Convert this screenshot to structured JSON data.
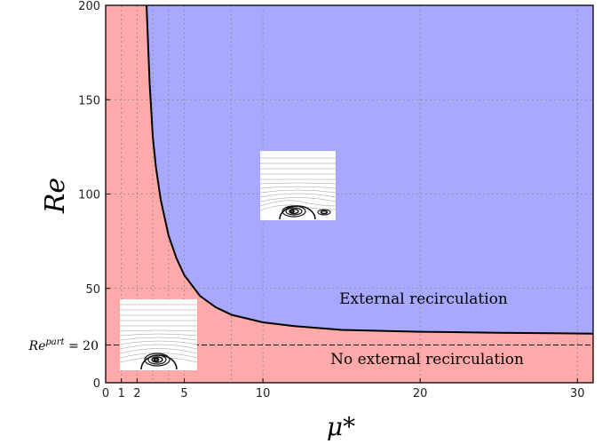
{
  "chart_data": {
    "type": "area",
    "title": "",
    "xlabel": "μ*",
    "ylabel": "Re",
    "xlim": [
      0,
      31
    ],
    "ylim": [
      0,
      200
    ],
    "x_ticks": [
      0,
      1,
      2,
      5,
      10,
      20,
      30
    ],
    "y_ticks": [
      0,
      20,
      50,
      100,
      150,
      200
    ],
    "x_tick_labels": [
      "0",
      "1",
      "2",
      "5",
      "10",
      "20",
      "30"
    ],
    "y_tick_labels": [
      "0",
      "50",
      "100",
      "150",
      "200"
    ],
    "grid_x": [
      1,
      2,
      3,
      4,
      5,
      8,
      10,
      20,
      30
    ],
    "grid_y": [
      50,
      100,
      150
    ],
    "grid": true,
    "boundary_curve": {
      "x": [
        2.6,
        2.8,
        3,
        3.2,
        3.5,
        4,
        4.5,
        5,
        6,
        7,
        8,
        10,
        12,
        15,
        20,
        25,
        31
      ],
      "y": [
        200,
        158,
        130,
        114,
        97,
        78,
        66,
        57,
        46,
        40,
        36,
        32,
        30,
        28,
        27,
        26.5,
        26
      ]
    },
    "reference_line": {
      "y": 20,
      "label_left": "Re",
      "label_sup": "part",
      "label_right": " = 20"
    },
    "regions": [
      {
        "label": "External recirculation",
        "color": "#a8a8ff"
      },
      {
        "label": "No external recirculation",
        "color": "#ffaaaa"
      }
    ],
    "colors": {
      "upper": "#a8a8ff",
      "lower": "#ffaaaa",
      "curve": "#000000"
    },
    "insets": [
      "flow-inset-with-external-recirculation",
      "flow-inset-without-external-recirculation"
    ]
  }
}
